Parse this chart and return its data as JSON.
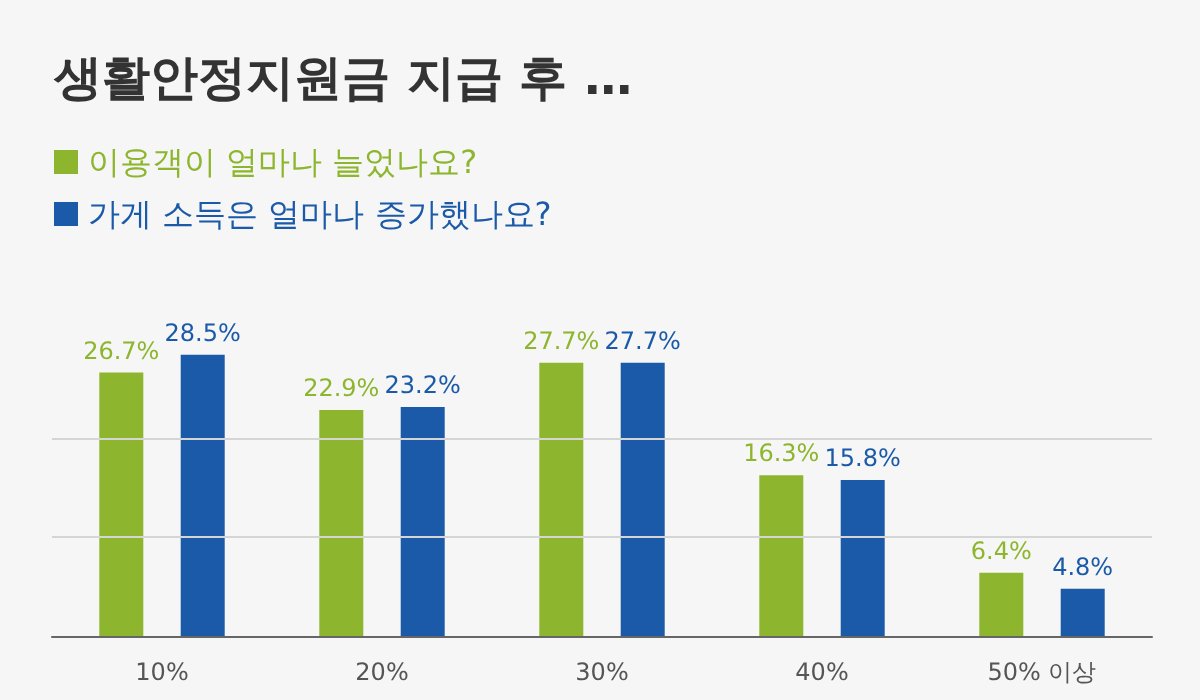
{
  "chart_data": {
    "type": "bar",
    "title": "생활안정지원금 지급 후 …",
    "categories": [
      "10%",
      "20%",
      "30%",
      "40%",
      "50% 이상"
    ],
    "series": [
      {
        "name": "이용객이 얼마나 늘었나요?",
        "color": "#8db62e",
        "values": [
          26.7,
          22.9,
          27.7,
          16.3,
          6.4
        ],
        "value_labels": [
          "26.7%",
          "22.9%",
          "27.7%",
          "16.3%",
          "6.4%"
        ]
      },
      {
        "name": "가게 소득은 얼마나 증가했나요?",
        "color": "#1a5aa8",
        "values": [
          28.5,
          23.2,
          27.7,
          15.8,
          4.8
        ],
        "value_labels": [
          "28.5%",
          "23.2%",
          "27.7%",
          "15.8%",
          "4.8%"
        ]
      }
    ],
    "ref_lines": [
      {
        "axis": "y",
        "value": 10,
        "color": "#d5d5d5"
      },
      {
        "axis": "y",
        "value": 20,
        "color": "#d5d5d5"
      }
    ],
    "tick_labels": "x",
    "legend": "top left"
  }
}
